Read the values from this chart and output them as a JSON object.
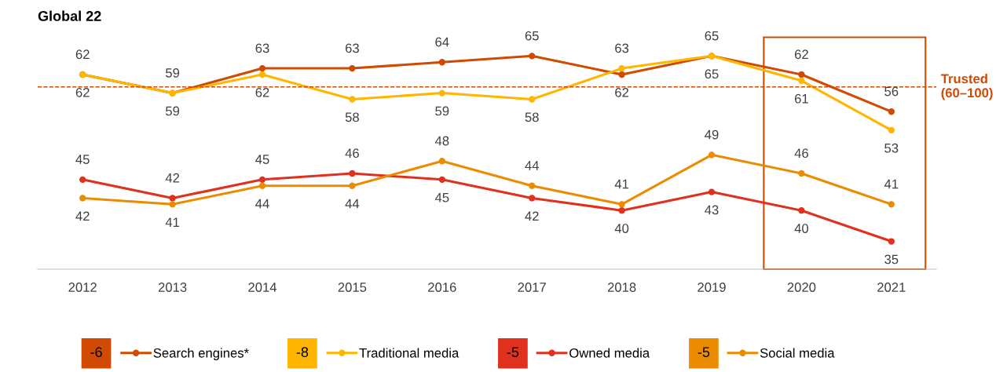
{
  "chart_data": {
    "type": "line",
    "title": "Global 22",
    "categories": [
      "2012",
      "2013",
      "2014",
      "2015",
      "2016",
      "2017",
      "2018",
      "2019",
      "2020",
      "2021"
    ],
    "series": [
      {
        "name": "Search engines*",
        "color": "#d04a02",
        "values": [
          62,
          59,
          63,
          63,
          64,
          65,
          62,
          65,
          62,
          56
        ]
      },
      {
        "name": "Traditional media",
        "color": "#ffb600",
        "values": [
          62,
          59,
          62,
          58,
          59,
          58,
          63,
          65,
          61,
          53
        ]
      },
      {
        "name": "Owned media",
        "color": "#e0301e",
        "values": [
          45,
          42,
          45,
          46,
          45,
          42,
          40,
          43,
          40,
          35
        ]
      },
      {
        "name": "Social media",
        "color": "#eb8c00",
        "values": [
          42,
          41,
          44,
          44,
          48,
          44,
          41,
          49,
          46,
          41
        ]
      }
    ],
    "annotations": [
      "-6",
      "-8",
      "-5",
      "-5"
    ],
    "ref_lines": [
      {
        "axis": "y",
        "value": 60,
        "label": "Trusted\n(60–100)",
        "color": "#d04a02",
        "line_style": "dashed"
      }
    ],
    "data_labels": true,
    "marker": "circle",
    "line_style": "solid",
    "grid": false,
    "legend": "bottom"
  }
}
